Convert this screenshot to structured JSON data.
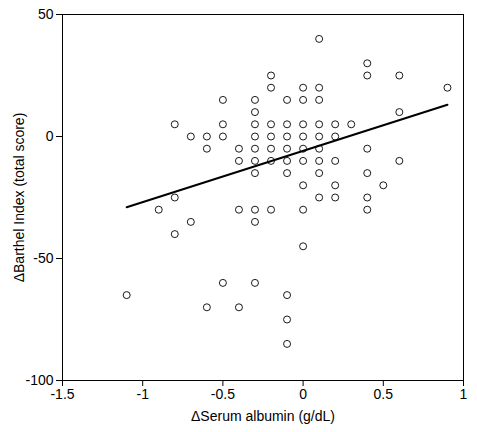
{
  "chart_data": {
    "type": "scatter",
    "xlabel": "ΔSerum albumin (g/dL)",
    "ylabel": "ΔBarthel Index (total score)",
    "xlim": [
      -1.5,
      1
    ],
    "xticks": [
      -1.5,
      -1,
      -0.5,
      0,
      0.5,
      1
    ],
    "ylim": [
      -100,
      50
    ],
    "yticks": [
      -100,
      -50,
      0,
      50
    ],
    "color": "#000000",
    "marker": "open circle",
    "x": [
      -1.1,
      -0.9,
      -0.8,
      -0.8,
      -0.8,
      -0.7,
      -0.7,
      -0.6,
      -0.6,
      -0.6,
      -0.5,
      -0.5,
      -0.5,
      -0.5,
      -0.4,
      -0.4,
      -0.4,
      -0.4,
      -0.3,
      -0.3,
      -0.3,
      -0.3,
      -0.3,
      -0.3,
      -0.3,
      -0.3,
      -0.3,
      -0.3,
      -0.2,
      -0.2,
      -0.2,
      -0.2,
      -0.2,
      -0.2,
      -0.2,
      -0.1,
      -0.1,
      -0.1,
      -0.1,
      -0.1,
      -0.1,
      -0.1,
      -0.1,
      -0.1,
      0,
      0,
      0,
      0,
      0,
      0,
      0,
      0,
      0,
      0.1,
      0.1,
      0.1,
      0.1,
      0.1,
      0.1,
      0.1,
      0.1,
      0.1,
      0.2,
      0.2,
      0.2,
      0.2,
      0.2,
      0.3,
      0.4,
      0.4,
      0.4,
      0.4,
      0.4,
      0.4,
      0.5,
      0.6,
      0.6,
      0.6,
      0.9
    ],
    "y": [
      -65,
      -30,
      5,
      -25,
      -40,
      0,
      -35,
      0,
      -5,
      -70,
      15,
      5,
      0,
      -60,
      -5,
      -10,
      -30,
      -70,
      15,
      10,
      5,
      0,
      -5,
      -10,
      -15,
      -30,
      -35,
      -60,
      25,
      20,
      5,
      0,
      -5,
      -10,
      -30,
      15,
      5,
      0,
      -5,
      -10,
      -15,
      -65,
      -75,
      -85,
      20,
      15,
      5,
      0,
      -5,
      -10,
      -20,
      -30,
      -45,
      40,
      20,
      15,
      5,
      0,
      -5,
      -10,
      -15,
      -25,
      5,
      0,
      -10,
      -20,
      -25,
      5,
      30,
      25,
      -5,
      -15,
      -25,
      -30,
      -20,
      25,
      10,
      -10,
      20
    ],
    "fit": {
      "x": [
        -1.1,
        0.9
      ],
      "y": [
        -29,
        13
      ],
      "line_style": "solid"
    }
  }
}
